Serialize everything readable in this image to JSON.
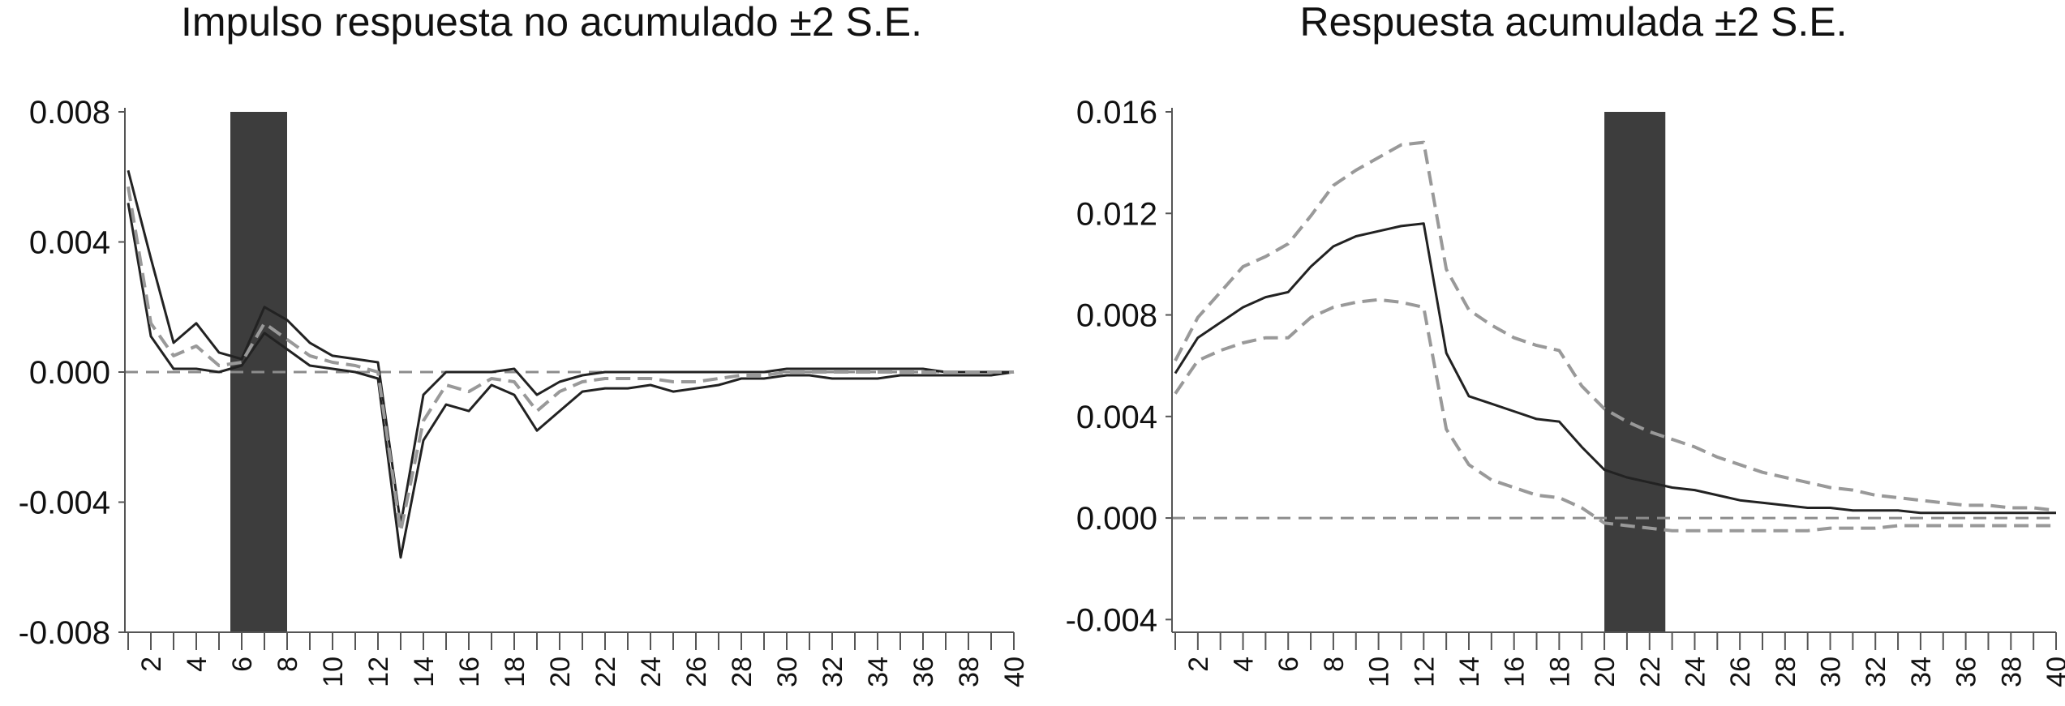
{
  "chart_data": [
    {
      "type": "line",
      "title": "Impulso respuesta no acumulado ±2 S.E.",
      "ylim": [
        -0.008,
        0.008
      ],
      "yticks": [
        0.008,
        0.004,
        0.0,
        -0.004,
        -0.008
      ],
      "ytick_labels": [
        "0.008",
        "0.004",
        "0.000",
        "-0.004",
        "-0.008"
      ],
      "xlim": [
        1,
        40
      ],
      "xticks": [
        2,
        4,
        6,
        8,
        10,
        12,
        14,
        16,
        18,
        20,
        22,
        24,
        26,
        28,
        30,
        32,
        34,
        36,
        38,
        40
      ],
      "xtick_labels": [
        "2",
        "4",
        "6",
        "8",
        "10",
        "12",
        "14",
        "16",
        "18",
        "20",
        "22",
        "24",
        "26",
        "28",
        "30",
        "32",
        "34",
        "36",
        "38",
        "40"
      ],
      "shaded_range": [
        5.5,
        8.0
      ],
      "zero_line": true,
      "x": [
        1,
        2,
        3,
        4,
        5,
        6,
        7,
        8,
        9,
        10,
        11,
        12,
        13,
        14,
        15,
        16,
        17,
        18,
        19,
        20,
        21,
        22,
        23,
        24,
        25,
        26,
        27,
        28,
        29,
        30,
        31,
        32,
        33,
        34,
        35,
        36,
        37,
        38,
        39,
        40
      ],
      "series": [
        {
          "role": "upper",
          "style": "solid",
          "color": "#222222",
          "values": [
            0.0062,
            0.0035,
            0.0009,
            0.0015,
            0.0006,
            0.0004,
            0.002,
            0.0016,
            0.0009,
            0.0005,
            0.0004,
            0.0003,
            -0.0047,
            -0.0007,
            0.0,
            0.0,
            0.0,
            0.0001,
            -0.0007,
            -0.0003,
            -0.0001,
            0.0,
            0.0,
            0.0,
            0.0,
            0.0,
            0.0,
            0.0,
            0.0,
            0.0001,
            0.0001,
            0.0001,
            0.0001,
            0.0001,
            0.0001,
            0.0001,
            0.0,
            0.0,
            0.0,
            0.0
          ]
        },
        {
          "role": "lower",
          "style": "solid",
          "color": "#222222",
          "values": [
            0.0052,
            0.0011,
            0.0001,
            0.0001,
            0.0,
            0.0002,
            0.0012,
            0.0007,
            0.0002,
            0.0001,
            0.0,
            -0.0002,
            -0.0057,
            -0.0021,
            -0.001,
            -0.0012,
            -0.0004,
            -0.0007,
            -0.0018,
            -0.0012,
            -0.0006,
            -0.0005,
            -0.0005,
            -0.0004,
            -0.0006,
            -0.0005,
            -0.0004,
            -0.0002,
            -0.0002,
            -0.0001,
            -0.0001,
            -0.0002,
            -0.0002,
            -0.0002,
            -0.0001,
            -0.0001,
            -0.0001,
            -0.0001,
            -0.0001,
            0.0
          ]
        },
        {
          "role": "response",
          "style": "dashed",
          "color": "#999999",
          "values": [
            0.0057,
            0.0015,
            0.0005,
            0.0008,
            0.0002,
            0.0003,
            0.0015,
            0.001,
            0.0005,
            0.0003,
            0.0002,
            0.0,
            -0.0049,
            -0.0015,
            -0.0004,
            -0.0006,
            -0.0002,
            -0.0003,
            -0.0012,
            -0.0006,
            -0.0003,
            -0.0002,
            -0.0002,
            -0.0002,
            -0.0003,
            -0.0003,
            -0.0002,
            -0.0001,
            -0.0001,
            0.0,
            0.0,
            0.0,
            0.0,
            0.0,
            0.0,
            0.0,
            0.0,
            0.0,
            0.0,
            0.0
          ]
        }
      ]
    },
    {
      "type": "line",
      "title": "Respuesta acumulada ±2 S.E.",
      "ylim": [
        -0.0045,
        0.016
      ],
      "yticks": [
        0.016,
        0.012,
        0.008,
        0.004,
        0.0,
        -0.004
      ],
      "ytick_labels": [
        "0.016",
        "0.012",
        "0.008",
        "0.004",
        "0.000",
        "-0.004"
      ],
      "xlim": [
        1,
        40
      ],
      "xticks": [
        2,
        4,
        6,
        8,
        10,
        12,
        14,
        16,
        18,
        20,
        22,
        24,
        26,
        28,
        30,
        32,
        34,
        36,
        38,
        40
      ],
      "xtick_labels": [
        "2",
        "4",
        "6",
        "8",
        "10",
        "12",
        "14",
        "16",
        "18",
        "20",
        "22",
        "24",
        "26",
        "28",
        "30",
        "32",
        "34",
        "36",
        "38",
        "40"
      ],
      "shaded_range": [
        20.0,
        22.7
      ],
      "zero_line": true,
      "x": [
        1,
        2,
        3,
        4,
        5,
        6,
        7,
        8,
        9,
        10,
        11,
        12,
        13,
        14,
        15,
        16,
        17,
        18,
        19,
        20,
        21,
        22,
        23,
        24,
        25,
        26,
        27,
        28,
        29,
        30,
        31,
        32,
        33,
        34,
        35,
        36,
        37,
        38,
        39,
        40
      ],
      "series": [
        {
          "role": "response",
          "style": "solid",
          "color": "#222222",
          "values": [
            0.0057,
            0.0071,
            0.0077,
            0.0083,
            0.0087,
            0.0089,
            0.0099,
            0.0107,
            0.0111,
            0.0113,
            0.0115,
            0.0116,
            0.0065,
            0.0048,
            0.0045,
            0.0042,
            0.0039,
            0.0038,
            0.0028,
            0.0019,
            0.0016,
            0.0014,
            0.0012,
            0.0011,
            0.0009,
            0.0007,
            0.0006,
            0.0005,
            0.0004,
            0.0004,
            0.0003,
            0.0003,
            0.0003,
            0.0002,
            0.0002,
            0.0002,
            0.0002,
            0.0002,
            0.0002,
            0.0002
          ]
        },
        {
          "role": "upper",
          "style": "dashed",
          "color": "#999999",
          "values": [
            0.0062,
            0.0079,
            0.0089,
            0.0099,
            0.0103,
            0.0108,
            0.0119,
            0.0131,
            0.0137,
            0.0142,
            0.0147,
            0.0148,
            0.0098,
            0.0082,
            0.0076,
            0.0071,
            0.0068,
            0.0066,
            0.0052,
            0.0043,
            0.0038,
            0.0034,
            0.0031,
            0.0028,
            0.0024,
            0.0021,
            0.0018,
            0.0016,
            0.0014,
            0.0012,
            0.0011,
            0.0009,
            0.0008,
            0.0007,
            0.0006,
            0.0005,
            0.0005,
            0.0004,
            0.0004,
            0.0003
          ]
        },
        {
          "role": "lower",
          "style": "dashed",
          "color": "#999999",
          "values": [
            0.0049,
            0.0062,
            0.0066,
            0.0069,
            0.0071,
            0.0071,
            0.0079,
            0.0083,
            0.0085,
            0.0086,
            0.0085,
            0.0083,
            0.0035,
            0.0021,
            0.0015,
            0.0012,
            0.0009,
            0.0008,
            0.0004,
            -0.0002,
            -0.0003,
            -0.0004,
            -0.0005,
            -0.0005,
            -0.0005,
            -0.0005,
            -0.0005,
            -0.0005,
            -0.0005,
            -0.0004,
            -0.0004,
            -0.0004,
            -0.0003,
            -0.0003,
            -0.0003,
            -0.0003,
            -0.0003,
            -0.0003,
            -0.0003,
            -0.0003
          ]
        }
      ]
    }
  ]
}
